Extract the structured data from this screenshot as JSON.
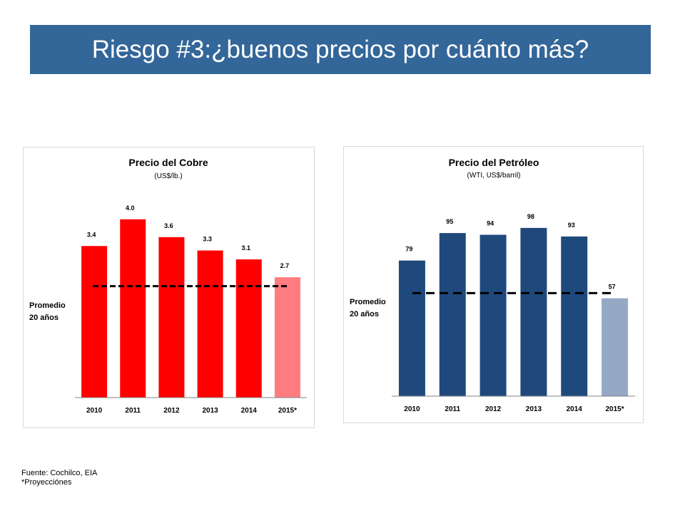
{
  "slide": {
    "title": "Riesgo #3:¿buenos precios por cuánto más?"
  },
  "footer": {
    "source": "Fuente: Cochilco, EIA",
    "note": "*Proyecciónes"
  },
  "colors": {
    "banner": "#336699",
    "copper_bar": "#FF0000",
    "copper_projection": "#FF7C80",
    "oil_bar": "#1F497D",
    "oil_projection": "#95A9C5"
  },
  "chart_data": [
    {
      "type": "bar",
      "title": "Precio del Cobre",
      "subtitle": "(US$/lb.)",
      "categories": [
        "2010",
        "2011",
        "2012",
        "2013",
        "2014",
        "2015*"
      ],
      "values": [
        3.4,
        4.0,
        3.6,
        3.3,
        3.1,
        2.7
      ],
      "labels": [
        "3.4",
        "4.0",
        "3.6",
        "3.3",
        "3.1",
        "2.7"
      ],
      "projected": [
        false,
        false,
        false,
        false,
        false,
        true
      ],
      "average_label": [
        "Promedio",
        "20 años"
      ],
      "average_value": 2.5,
      "ylim": [
        0,
        4.3
      ],
      "grid": false
    },
    {
      "type": "bar",
      "title": "Precio del Petróleo",
      "subtitle": "(WTI, US$/barril)",
      "categories": [
        "2010",
        "2011",
        "2012",
        "2013",
        "2014",
        "2015*"
      ],
      "values": [
        79,
        95,
        94,
        98,
        93,
        57
      ],
      "labels": [
        "79",
        "95",
        "94",
        "98",
        "93",
        "57"
      ],
      "projected": [
        false,
        false,
        false,
        false,
        false,
        true
      ],
      "average_label": [
        "Promedio",
        "20 años"
      ],
      "average_value": 60,
      "ylim": [
        0,
        105
      ],
      "grid": false
    }
  ]
}
